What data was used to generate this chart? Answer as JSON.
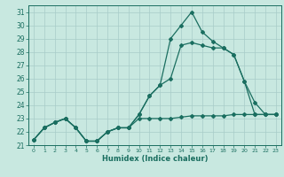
{
  "xlabel": "Humidex (Indice chaleur)",
  "bg_color": "#c8e8e0",
  "grid_color": "#a8ccc8",
  "line_color": "#1a6e60",
  "xlim": [
    -0.5,
    23.5
  ],
  "ylim": [
    21.0,
    31.5
  ],
  "yticks": [
    21,
    22,
    23,
    24,
    25,
    26,
    27,
    28,
    29,
    30,
    31
  ],
  "xticks": [
    0,
    1,
    2,
    3,
    4,
    5,
    6,
    7,
    8,
    9,
    10,
    11,
    12,
    13,
    14,
    15,
    16,
    17,
    18,
    19,
    20,
    21,
    22,
    23
  ],
  "series1": [
    21.4,
    22.3,
    22.7,
    23.0,
    22.3,
    21.3,
    21.3,
    22.0,
    22.3,
    22.3,
    23.3,
    24.7,
    25.5,
    29.0,
    30.0,
    31.0,
    29.5,
    28.8,
    28.3,
    27.8,
    25.8,
    24.2,
    23.3,
    23.3
  ],
  "series2": [
    21.4,
    22.3,
    22.7,
    23.0,
    22.3,
    21.3,
    21.3,
    22.0,
    22.3,
    22.3,
    23.3,
    24.7,
    25.5,
    26.0,
    28.5,
    28.7,
    28.5,
    28.3,
    28.3,
    27.8,
    25.8,
    23.3,
    23.3,
    23.3
  ],
  "series3": [
    21.4,
    22.3,
    22.7,
    23.0,
    22.3,
    21.3,
    21.3,
    22.0,
    22.3,
    22.3,
    23.0,
    23.0,
    23.0,
    23.0,
    23.1,
    23.2,
    23.2,
    23.2,
    23.2,
    23.3,
    23.3,
    23.3,
    23.3,
    23.3
  ]
}
